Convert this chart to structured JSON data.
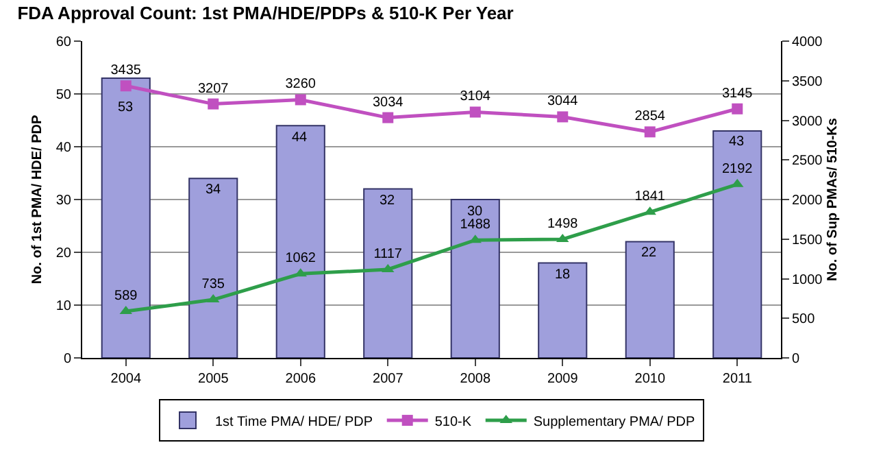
{
  "chart_data": {
    "type": "bar",
    "title": "FDA Approval Count: 1st PMA/HDE/PDPs & 510-K Per Year",
    "ylabel": "No. of 1st PMA/ HDE/ PDP",
    "y2label": "No. of Sup PMAs/ 510-Ks",
    "categories": [
      "2004",
      "2005",
      "2006",
      "2007",
      "2008",
      "2009",
      "2010",
      "2011"
    ],
    "series": [
      {
        "name": "1st Time PMA/ HDE/ PDP",
        "color": "#9f9fdc",
        "values": [
          53,
          34,
          44,
          32,
          30,
          18,
          22,
          43
        ]
      },
      {
        "name": "510-K",
        "type": "line",
        "axis": "y2",
        "marker": "square",
        "color": "#c050c0",
        "values": [
          3435,
          3207,
          3260,
          3034,
          3104,
          3044,
          2854,
          3145
        ]
      },
      {
        "name": "Supplementary PMA/ PDP",
        "type": "line",
        "axis": "y2",
        "marker": "triangle",
        "color": "#2e9e4a",
        "values": [
          589,
          735,
          1062,
          1117,
          1488,
          1498,
          1841,
          2192
        ]
      }
    ],
    "ylim": [
      0,
      60
    ],
    "yticks": [
      0,
      10,
      20,
      30,
      40,
      50,
      60
    ],
    "y2lim": [
      0,
      4000
    ],
    "y2ticks": [
      0,
      500,
      1000,
      1500,
      2000,
      2500,
      3000,
      3500,
      4000
    ],
    "grid": "y",
    "legend": "bottom",
    "data_labels": true
  }
}
